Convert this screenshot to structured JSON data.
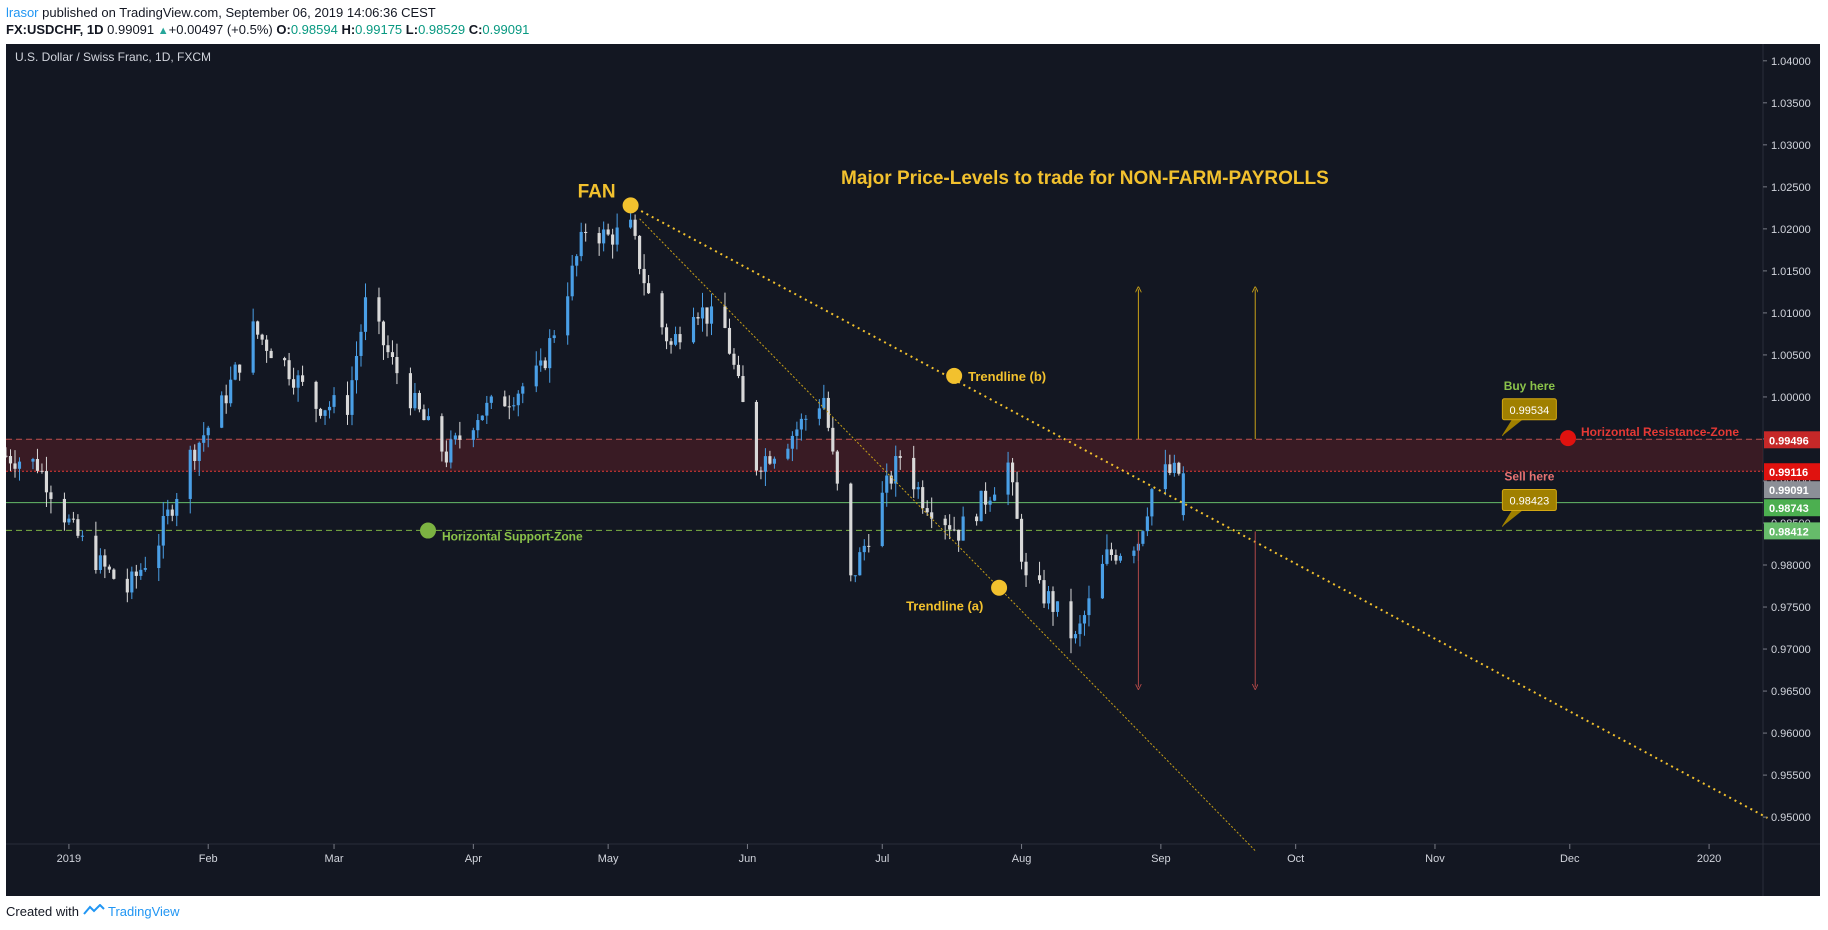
{
  "header": {
    "user": "lrasor",
    "published_text": " published on TradingView.com, September 06, 2019 14:06:36 CEST",
    "symbol": "FX:USDCHF, 1D",
    "last": "0.99091",
    "change": "+0.00497 (+0.5%)",
    "open_label": "O:",
    "open": "0.98594",
    "high_label": "H:",
    "high": "0.99175",
    "low_label": "L:",
    "low": "0.98529",
    "close_label": "C:",
    "close": "0.99091"
  },
  "footer": {
    "created_with": "Created with",
    "brand": "TradingView"
  },
  "colors": {
    "background": "#131722",
    "up": "#4a9fe6",
    "down": "#d9d9d9",
    "accent": "#f2c12e",
    "resistance": "#d32f2f",
    "support": "#4caf50"
  },
  "chart_data": {
    "type": "candlestick",
    "title": "U.S. Dollar / Swiss Franc, 1D, FXCM",
    "y_ticks": [
      "1.04000",
      "1.03500",
      "1.03000",
      "1.02500",
      "1.02000",
      "1.01500",
      "1.01000",
      "1.00500",
      "1.00000",
      "0.99500",
      "0.99000",
      "0.98500",
      "0.98000",
      "0.97500",
      "0.97000",
      "0.96500",
      "0.96000",
      "0.95500",
      "0.95000"
    ],
    "y_tick_values": [
      1.04,
      1.035,
      1.03,
      1.025,
      1.02,
      1.015,
      1.01,
      1.005,
      1.0,
      0.995,
      0.99,
      0.985,
      0.98,
      0.975,
      0.97,
      0.965,
      0.96,
      0.955,
      0.95
    ],
    "ylim": [
      0.9468,
      1.042
    ],
    "x_ticks": [
      "2019",
      "Feb",
      "Mar",
      "Apr",
      "May",
      "Jun",
      "Jul",
      "Aug",
      "Sep",
      "Oct",
      "Nov",
      "Dec",
      "2020"
    ],
    "x_tick_dates": [
      "2019-01-01",
      "2019-02-01",
      "2019-03-01",
      "2019-04-01",
      "2019-05-01",
      "2019-06-01",
      "2019-07-01",
      "2019-08-01",
      "2019-09-01",
      "2019-10-01",
      "2019-11-01",
      "2019-12-01",
      "2020-01-01"
    ],
    "xlim": [
      "2018-12-18",
      "2020-01-13"
    ],
    "anchors": [
      [
        "2018-12-18",
        0.993
      ],
      [
        "2018-12-25",
        0.992
      ],
      [
        "2019-01-02",
        0.984
      ],
      [
        "2019-01-08",
        0.98
      ],
      [
        "2019-01-14",
        0.977
      ],
      [
        "2019-01-21",
        0.983
      ],
      [
        "2019-01-28",
        0.993
      ],
      [
        "2019-02-04",
        0.999
      ],
      [
        "2019-02-11",
        1.008
      ],
      [
        "2019-02-18",
        1.004
      ],
      [
        "2019-02-25",
        0.999
      ],
      [
        "2019-03-04",
        0.999
      ],
      [
        "2019-03-08",
        1.011
      ],
      [
        "2019-03-14",
        1.004
      ],
      [
        "2019-03-20",
        0.998
      ],
      [
        "2019-03-26",
        0.993
      ],
      [
        "2019-04-02",
        0.998
      ],
      [
        "2019-04-09",
        1.0
      ],
      [
        "2019-04-16",
        1.003
      ],
      [
        "2019-04-22",
        1.013
      ],
      [
        "2019-04-26",
        1.02
      ],
      [
        "2019-05-01",
        1.019
      ],
      [
        "2019-05-06",
        1.02
      ],
      [
        "2019-05-10",
        1.012
      ],
      [
        "2019-05-15",
        1.006
      ],
      [
        "2019-05-20",
        1.011
      ],
      [
        "2019-05-27",
        1.008
      ],
      [
        "2019-06-03",
        0.992
      ],
      [
        "2019-06-10",
        0.995
      ],
      [
        "2019-06-18",
        1.0
      ],
      [
        "2019-06-24",
        0.978
      ],
      [
        "2019-07-01",
        0.988
      ],
      [
        "2019-07-05",
        0.993
      ],
      [
        "2019-07-10",
        0.988
      ],
      [
        "2019-07-18",
        0.984
      ],
      [
        "2019-07-24",
        0.988
      ],
      [
        "2019-07-29",
        0.992
      ],
      [
        "2019-08-02",
        0.978
      ],
      [
        "2019-08-07",
        0.976
      ],
      [
        "2019-08-13",
        0.971
      ],
      [
        "2019-08-20",
        0.981
      ],
      [
        "2019-08-27",
        0.983
      ],
      [
        "2019-08-31",
        0.991
      ],
      [
        "2019-09-06",
        0.9909
      ]
    ],
    "last_candle": {
      "date": "2019-09-06",
      "open": 0.98594,
      "high": 0.99175,
      "low": 0.98529,
      "close": 0.99091
    },
    "price_labels": [
      {
        "text": "0.99496",
        "value": 0.99496,
        "color": "#c62828"
      },
      {
        "text": "0.99116",
        "value": 0.99116,
        "color": "#e0120f"
      },
      {
        "text": "0.99091",
        "value": 0.99091,
        "color": "#8c8f97"
      },
      {
        "text": "0.98743",
        "value": 0.98743,
        "color": "#4caf50"
      },
      {
        "text": "0.98412",
        "value": 0.98412,
        "color": "#66bb6a"
      }
    ],
    "resistance_zone": {
      "from": 0.99116,
      "to": 0.99496,
      "label": "Horizontal Resistance-Zone"
    },
    "support_line": {
      "value": 0.98412,
      "label": "Horizontal Support-Zone"
    },
    "green_line": 0.98743,
    "trendline_a": {
      "label": "Trendline (a)",
      "from": [
        "2019-05-08",
        1.0212
      ],
      "to": [
        "2019-09-22",
        0.946
      ],
      "marker": [
        "2019-07-27",
        0.9773
      ]
    },
    "trendline_b": {
      "label": "Trendline (b)",
      "from": [
        "2019-05-06",
        1.0228
      ],
      "to": [
        "2020-01-14",
        0.9499
      ],
      "marker": [
        "2019-07-17",
        1.0025
      ]
    },
    "fan": {
      "label": "FAN",
      "date": "2019-05-06",
      "value": 1.0228
    },
    "annotation": "Major Price-Levels to trade for NON-FARM-PAYROLLS",
    "buy_here": {
      "label": "Buy here",
      "price": "0.99534",
      "date": "2019-11-16"
    },
    "sell_here": {
      "label": "Sell here",
      "price": "0.98423",
      "date": "2019-11-16"
    },
    "arrows_up": [
      [
        "2019-08-27",
        0.995,
        1.0128
      ],
      [
        "2019-09-22",
        0.995,
        1.0128
      ]
    ],
    "arrows_down": [
      [
        "2019-08-27",
        0.984,
        0.9655
      ],
      [
        "2019-09-22",
        0.984,
        0.9655
      ]
    ]
  }
}
